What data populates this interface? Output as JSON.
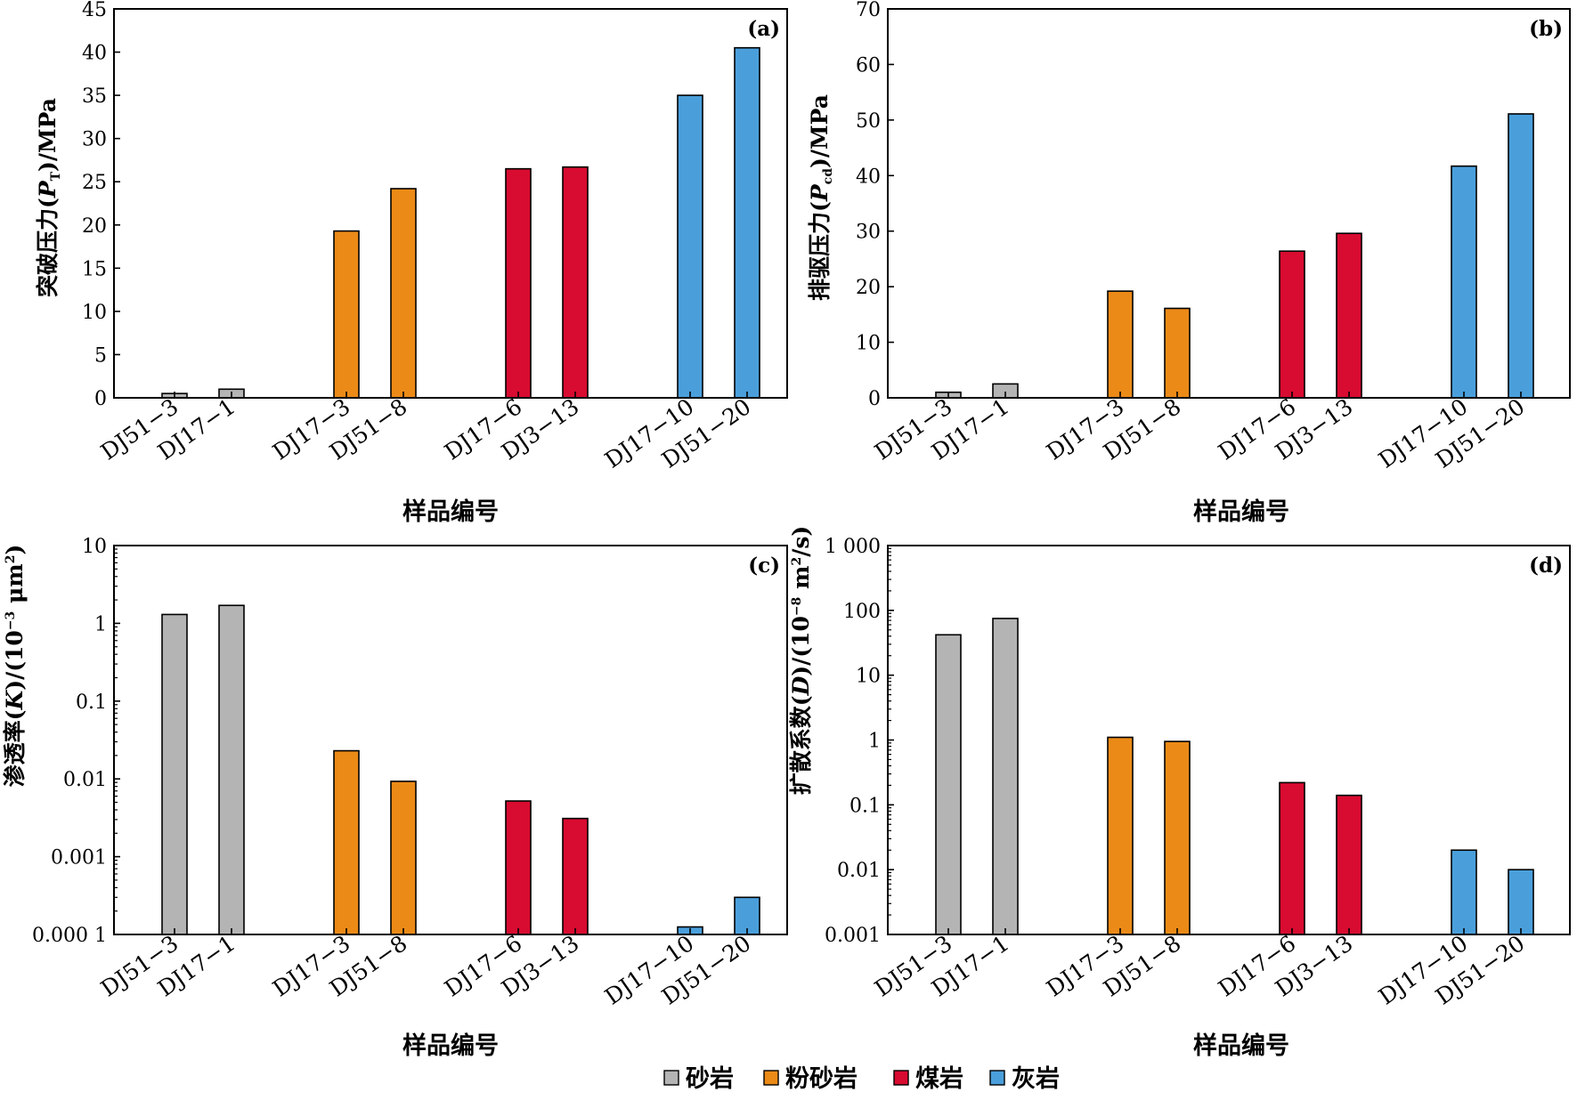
{
  "colors": {
    "砂岩": "#b4b4b4",
    "粉砂岩": "#eb8a17",
    "煤岩": "#d80b30",
    "灰岩": "#4a9fdb"
  },
  "legend": [
    {
      "label": "砂岩",
      "color": "#b4b4b4"
    },
    {
      "label": "粉砂岩",
      "color": "#eb8a17"
    },
    {
      "label": "煤岩",
      "color": "#d80b30"
    },
    {
      "label": "灰岩",
      "color": "#4a9fdb"
    }
  ],
  "chart_data": [
    {
      "type": "bar",
      "panel": "(a)",
      "xlabel": "样品编号",
      "ylabel": "突破压力(P_T)/MPa",
      "scale": "linear",
      "ylim": [
        0,
        45
      ],
      "yticks": [
        0,
        5,
        10,
        15,
        20,
        25,
        30,
        35,
        40,
        45
      ],
      "ytick_labels": [
        "0",
        "5",
        "10",
        "15",
        "20",
        "25",
        "30",
        "35",
        "40",
        "45"
      ],
      "categories": [
        "DJ51−3",
        "DJ17−1",
        "DJ17−3",
        "DJ51−8",
        "DJ17−6",
        "DJ3−13",
        "DJ17−10",
        "DJ51−20"
      ],
      "groups": [
        "砂岩",
        "砂岩",
        "粉砂岩",
        "粉砂岩",
        "煤岩",
        "煤岩",
        "灰岩",
        "灰岩"
      ],
      "values": [
        0.5,
        1.0,
        19.3,
        24.2,
        26.5,
        26.7,
        35.0,
        40.5
      ]
    },
    {
      "type": "bar",
      "panel": "(b)",
      "xlabel": "样品编号",
      "ylabel": "排驱压力(P_cd)/MPa",
      "scale": "linear",
      "ylim": [
        0,
        70
      ],
      "yticks": [
        0,
        10,
        20,
        30,
        40,
        50,
        60,
        70
      ],
      "ytick_labels": [
        "0",
        "10",
        "20",
        "30",
        "40",
        "50",
        "60",
        "70"
      ],
      "categories": [
        "DJ51−3",
        "DJ17−1",
        "DJ17−3",
        "DJ51−8",
        "DJ17−6",
        "DJ3−13",
        "DJ17−10",
        "DJ51−20"
      ],
      "groups": [
        "砂岩",
        "砂岩",
        "粉砂岩",
        "粉砂岩",
        "煤岩",
        "煤岩",
        "灰岩",
        "灰岩"
      ],
      "values": [
        1.0,
        2.5,
        19.2,
        16.1,
        26.4,
        29.6,
        41.7,
        51.1
      ]
    },
    {
      "type": "bar",
      "panel": "(c)",
      "xlabel": "样品编号",
      "ylabel": "渗透率(K)/(10^-3 μm^2)",
      "scale": "log",
      "ylim": [
        0.0001,
        10
      ],
      "yticks": [
        0.0001,
        0.001,
        0.01,
        0.1,
        1,
        10
      ],
      "ytick_labels": [
        "0.000 1",
        "0.001",
        "0.01",
        "0.1",
        "1",
        "10"
      ],
      "categories": [
        "DJ51−3",
        "DJ17−1",
        "DJ17−3",
        "DJ51−8",
        "DJ17−6",
        "DJ3−13",
        "DJ17−10",
        "DJ51−20"
      ],
      "groups": [
        "砂岩",
        "砂岩",
        "粉砂岩",
        "粉砂岩",
        "煤岩",
        "煤岩",
        "灰岩",
        "灰岩"
      ],
      "values": [
        1.3,
        1.7,
        0.023,
        0.0093,
        0.0052,
        0.0031,
        0.000125,
        0.0003
      ]
    },
    {
      "type": "bar",
      "panel": "(d)",
      "xlabel": "样品编号",
      "ylabel": "扩散系数(D)/(10^-8 m^2/s)",
      "scale": "log",
      "ylim": [
        0.001,
        1000
      ],
      "yticks": [
        0.001,
        0.01,
        0.1,
        1,
        10,
        100,
        1000
      ],
      "ytick_labels": [
        "0.001",
        "0.01",
        "0.1",
        "1",
        "10",
        "100",
        "1 000"
      ],
      "categories": [
        "DJ51−3",
        "DJ17−1",
        "DJ17−3",
        "DJ51−8",
        "DJ17−6",
        "DJ3−13",
        "DJ17−10",
        "DJ51−20"
      ],
      "groups": [
        "砂岩",
        "砂岩",
        "粉砂岩",
        "粉砂岩",
        "煤岩",
        "煤岩",
        "灰岩",
        "灰岩"
      ],
      "values": [
        42,
        75,
        1.1,
        0.95,
        0.22,
        0.14,
        0.02,
        0.01
      ]
    }
  ]
}
